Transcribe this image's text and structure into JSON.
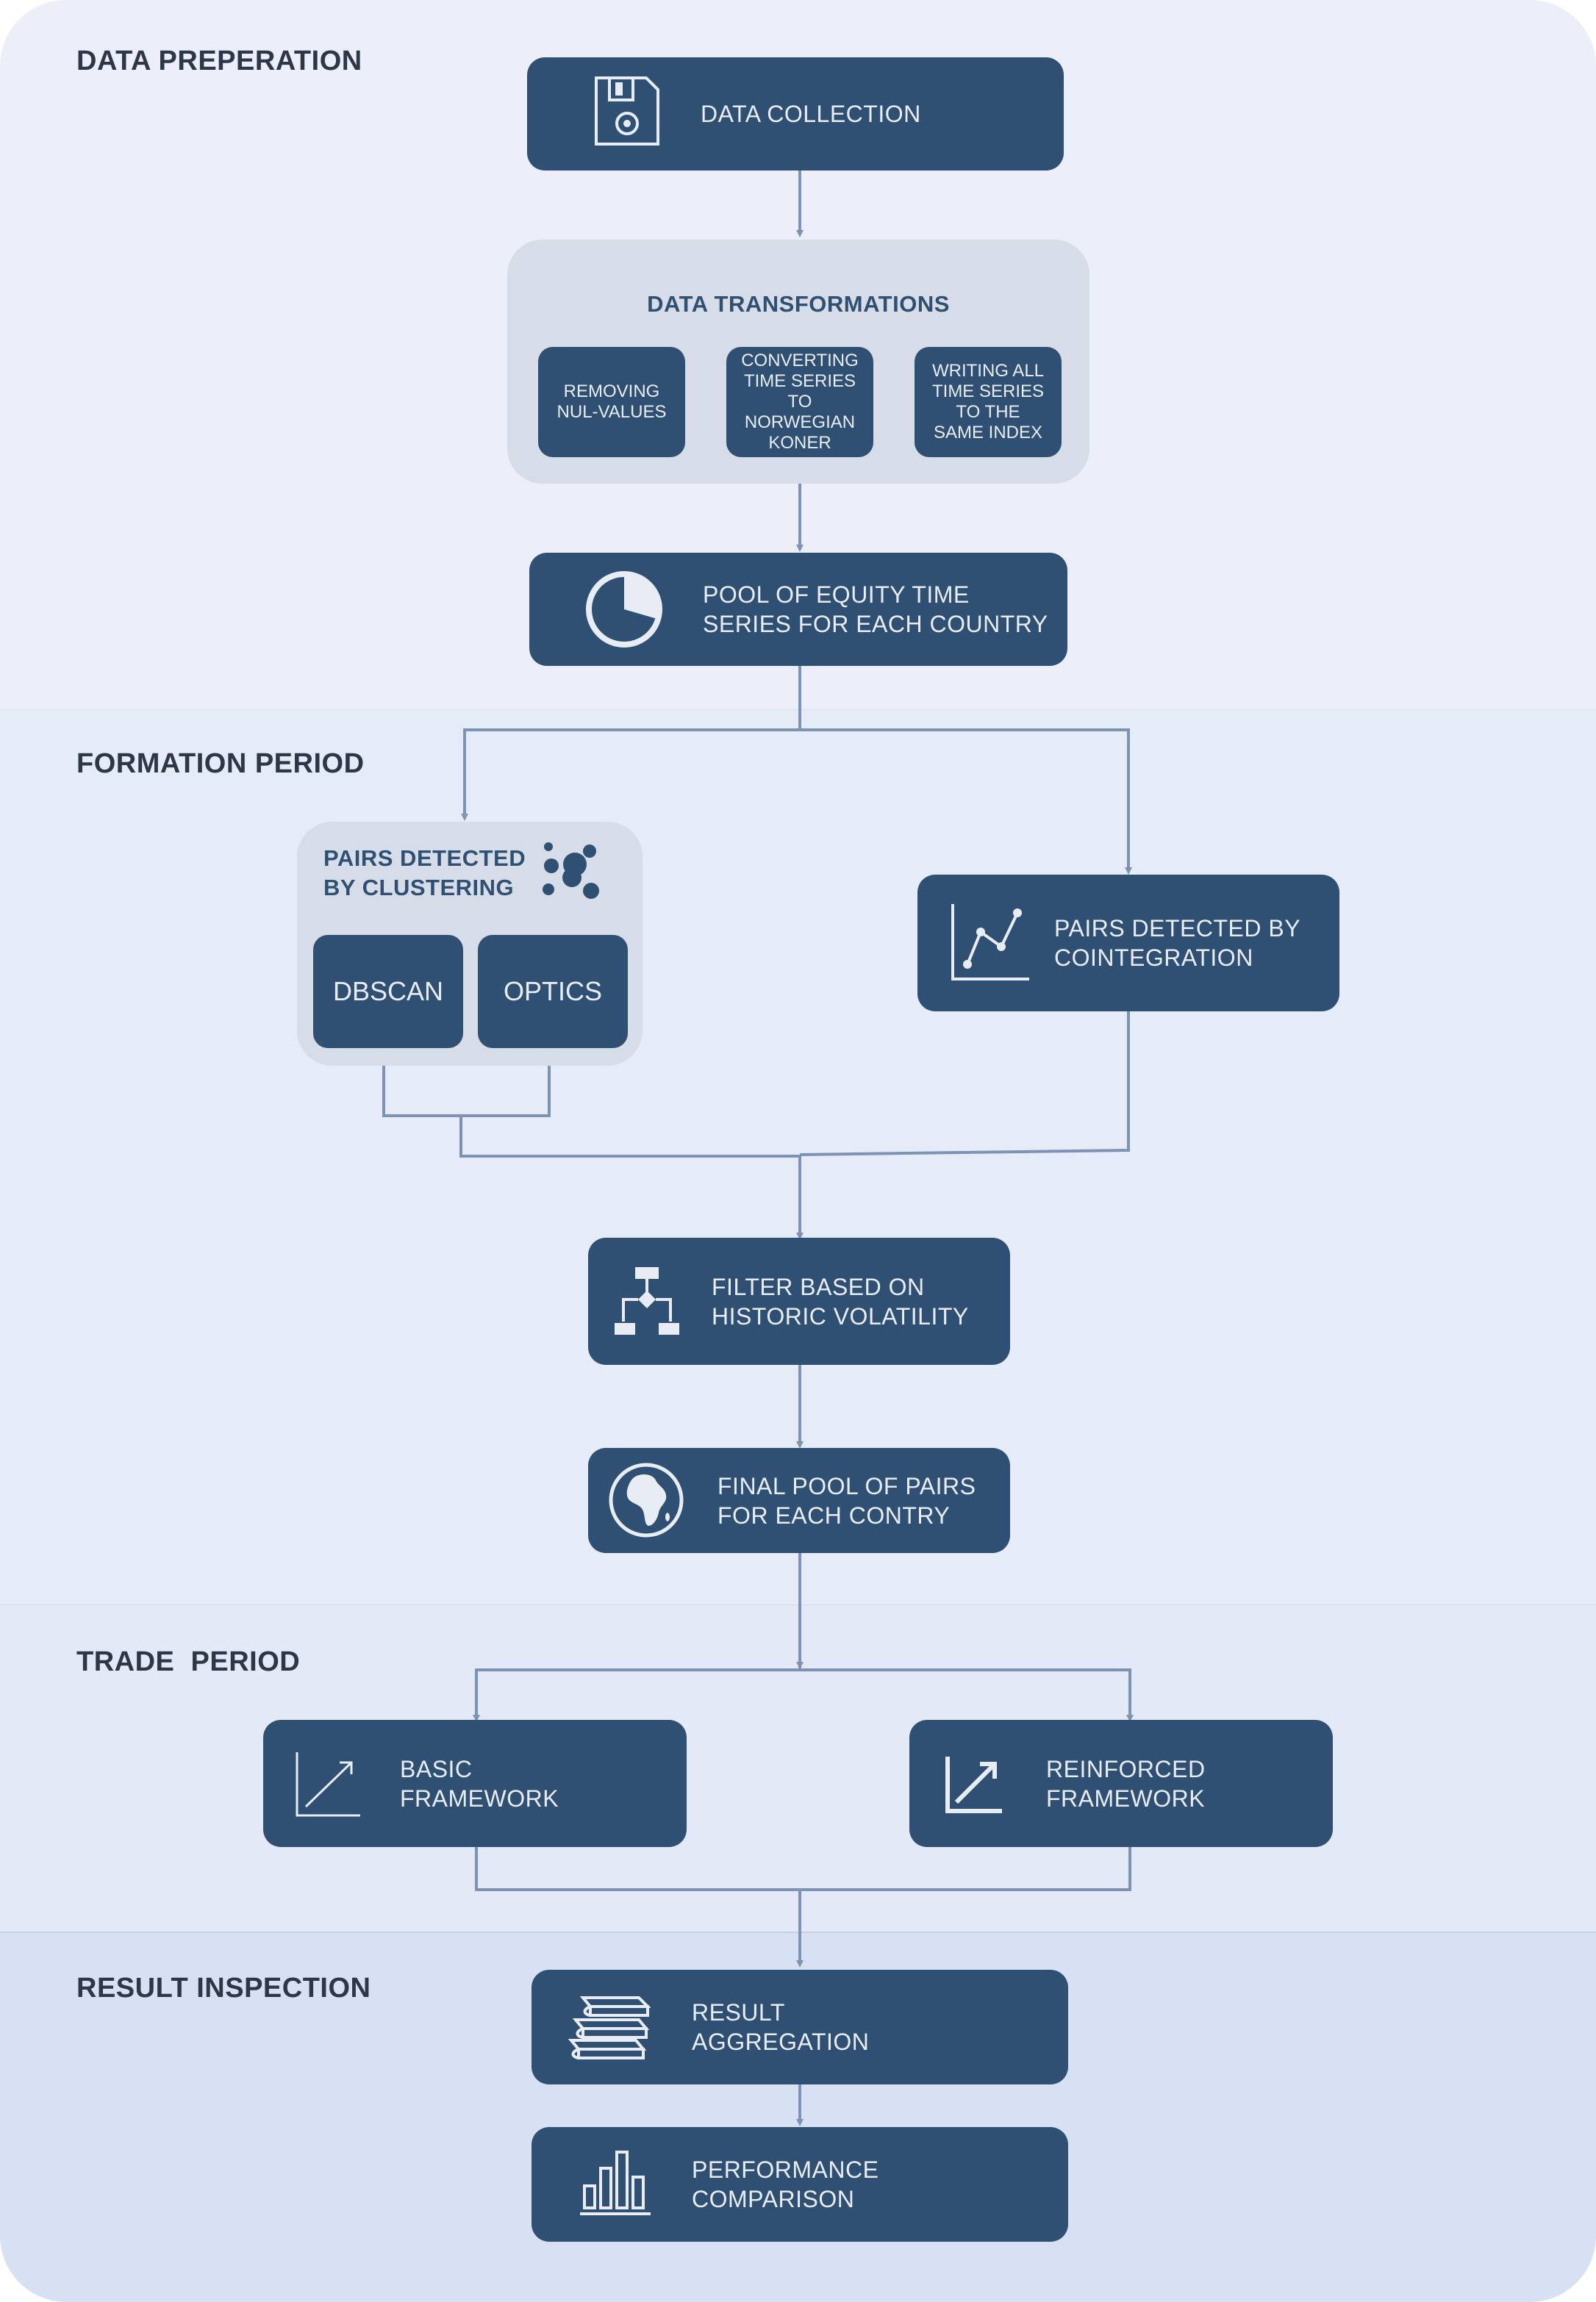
{
  "colors": {
    "band_1": "#eceff9",
    "band_2": "#e5ecf7",
    "band_3": "#e3e9f6",
    "band_4": "#d8e0f3",
    "node": "#2f5073",
    "group": "#d6dde8",
    "connector": "#7d93b3",
    "label": "#2d3748"
  },
  "sections": {
    "data_preparation": "DATA PREPERATION",
    "formation_period": "FORMATION PERIOD",
    "trade_period": "TRADE  PERIOD",
    "result_inspection": "RESULT INSPECTION"
  },
  "nodes": {
    "data_collection": {
      "label": "DATA COLLECTION",
      "icon": "floppy-disk-icon"
    },
    "data_transformations": {
      "title": "DATA TRANSFORMATIONS",
      "steps": [
        "REMOVING\nNUL-VALUES",
        "CONVERTING\nTIME SERIES\nTO\nNORWEGIAN\nKONER",
        "WRITING ALL\nTIME SERIES\nTO THE\nSAME INDEX"
      ]
    },
    "equity_pool": {
      "label": "POOL OF EQUITY TIME\nSERIES FOR EACH COUNTRY",
      "icon": "pie-chart-icon"
    },
    "clustering": {
      "title": "PAIRS DETECTED\nBY CLUSTERING",
      "icon": "bubbles-icon",
      "methods": [
        "DBSCAN",
        "OPTICS"
      ]
    },
    "cointegration": {
      "label": "PAIRS DETECTED BY\nCOINTEGRATION",
      "icon": "line-chart-icon"
    },
    "volatility_filter": {
      "label": "FILTER BASED ON\nHISTORIC VOLATILITY",
      "icon": "flowchart-icon"
    },
    "final_pool": {
      "label": "FINAL POOL OF PAIRS\nFOR EACH CONTRY",
      "icon": "globe-icon"
    },
    "basic_framework": {
      "label": "BASIC\nFRAMEWORK",
      "icon": "trend-up-icon"
    },
    "reinforced_framework": {
      "label": "REINFORCED\nFRAMEWORK",
      "icon": "trend-up-bold-icon"
    },
    "result_aggregation": {
      "label": "RESULT\nAGGREGATION",
      "icon": "book-stack-icon"
    },
    "performance_comparison": {
      "label": "PERFORMANCE\nCOMPARISON",
      "icon": "bar-chart-icon"
    }
  }
}
